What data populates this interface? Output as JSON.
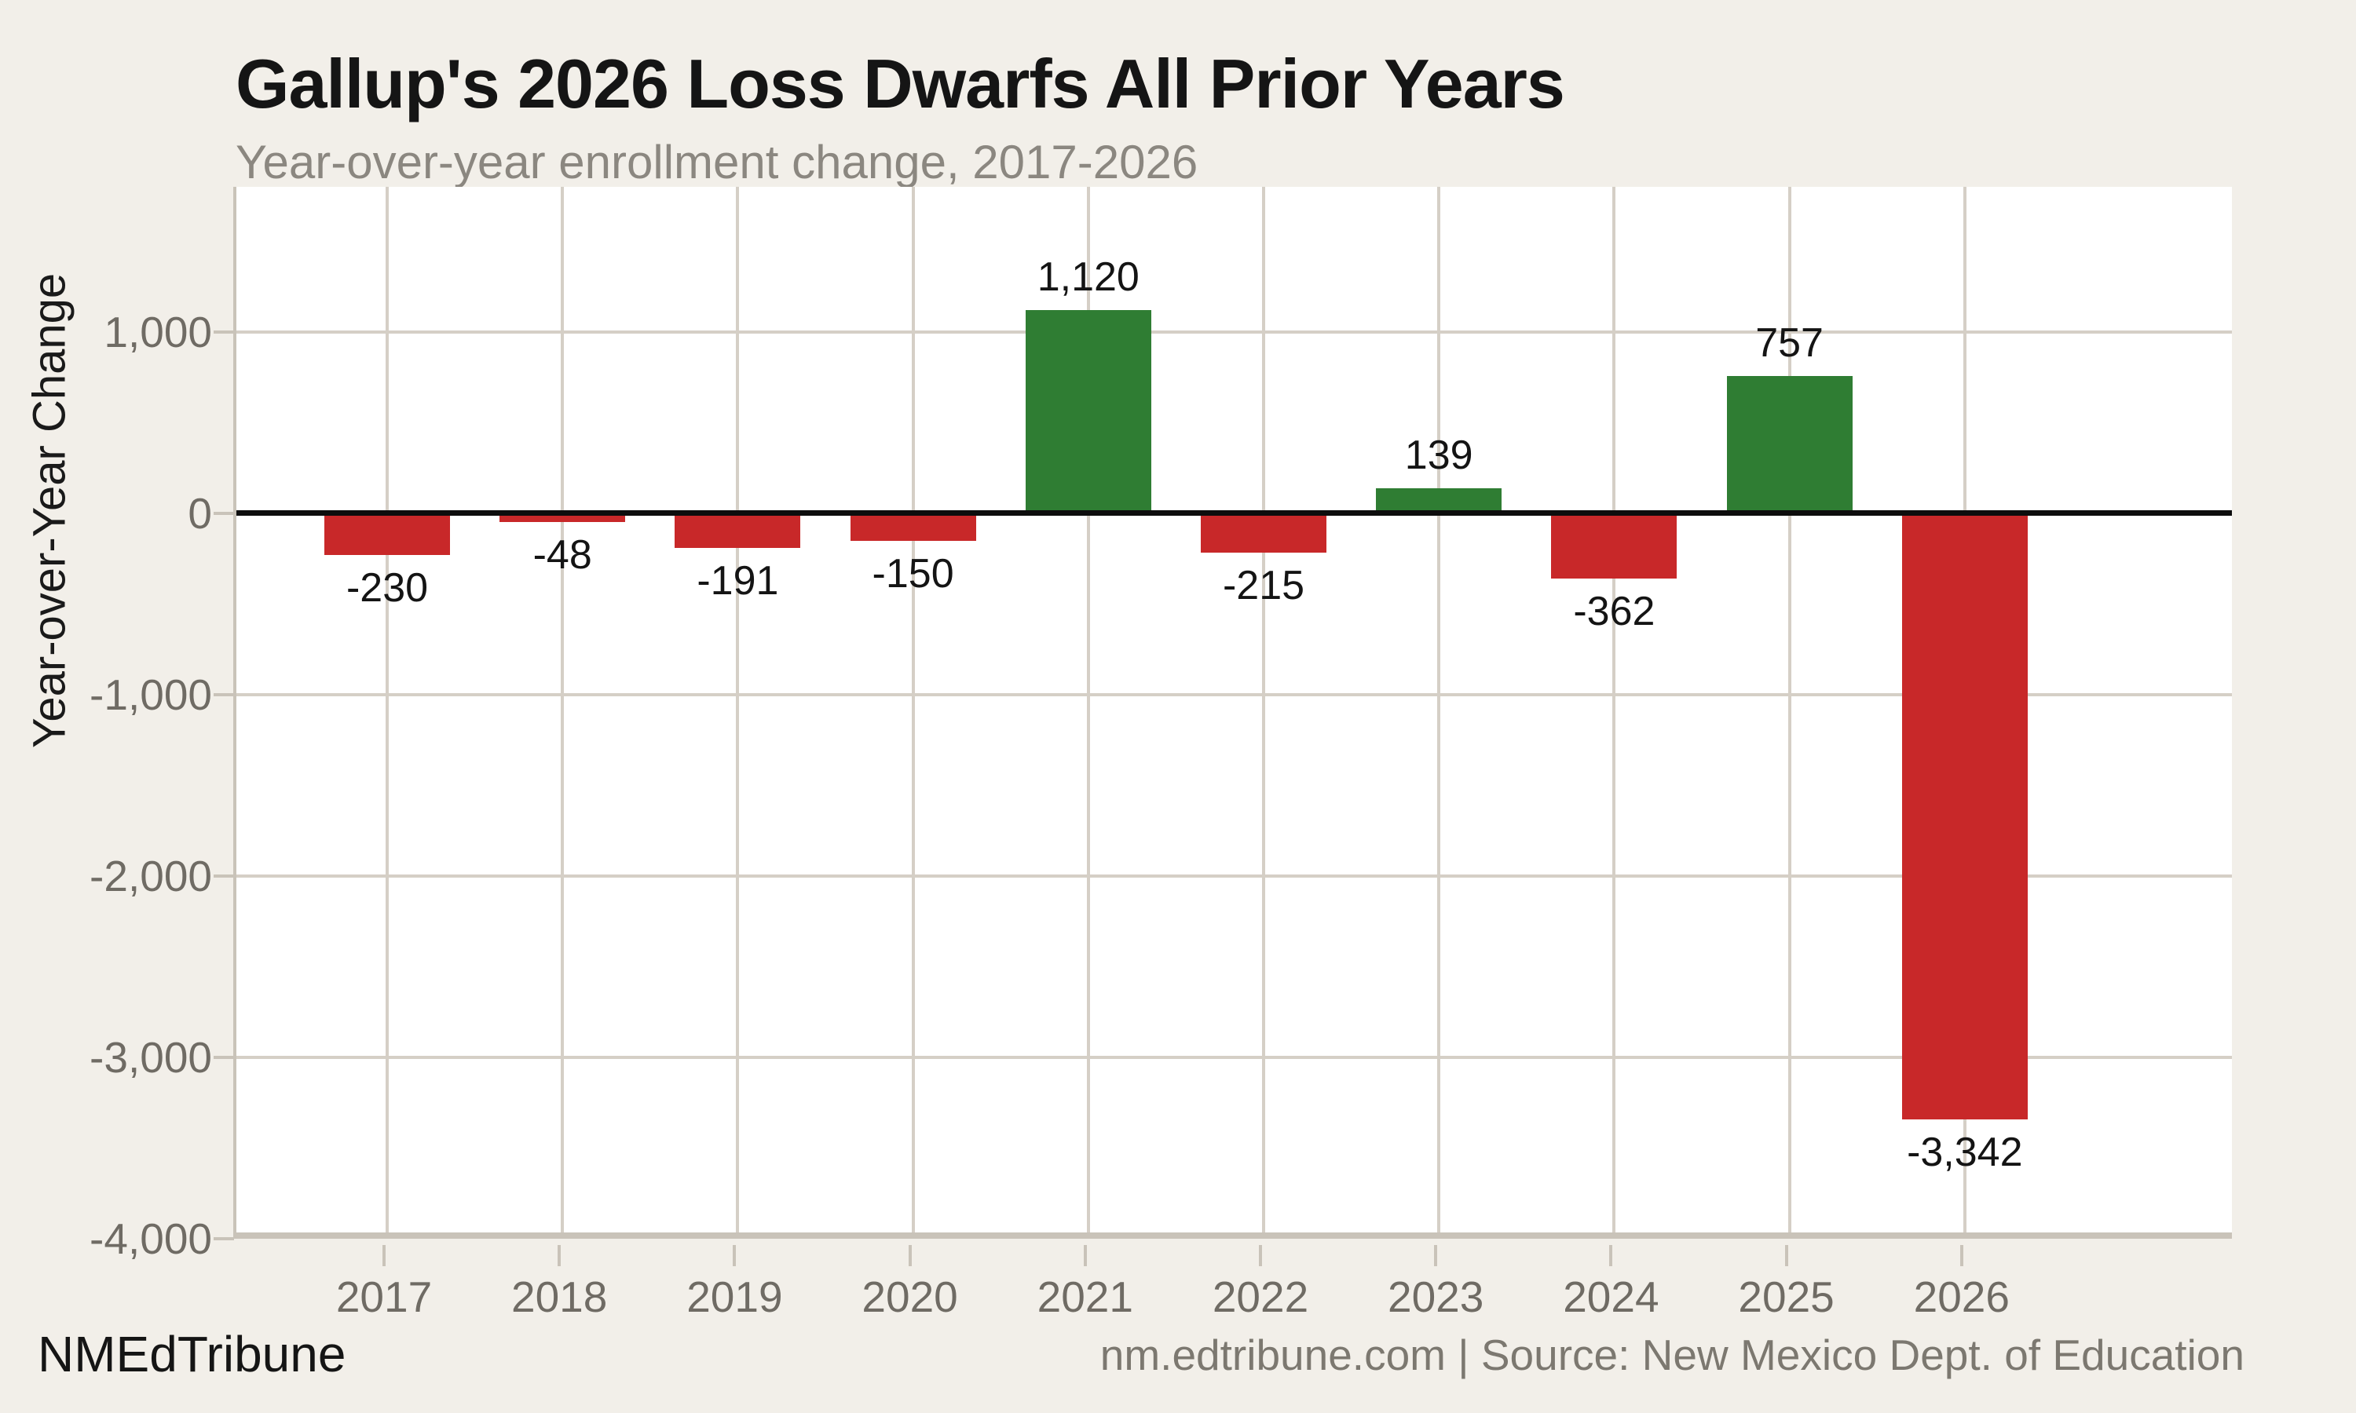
{
  "title": "Gallup's 2026 Loss Dwarfs All Prior Years",
  "subtitle": "Year-over-year enrollment change, 2017-2026",
  "footer": {
    "brand": "NMEdTribune",
    "source": "nm.edtribune.com | Source: New Mexico Dept. of Education"
  },
  "colors": {
    "background": "#F2EFE9",
    "plot_background": "#FFFFFF",
    "gridline": "#D5CFC6",
    "axis_line": "#C9C3B9",
    "zero_line": "#0D0D0D",
    "positive_bar": "#2F7D33",
    "negative_bar": "#C82829",
    "tick_label": "#6F6B64",
    "bar_label": "#141414"
  },
  "chart_data": {
    "type": "bar",
    "title": "Gallup's 2026 Loss Dwarfs All Prior Years",
    "subtitle": "Year-over-year enrollment change, 2017-2026",
    "categories": [
      "2017",
      "2018",
      "2019",
      "2020",
      "2021",
      "2022",
      "2023",
      "2024",
      "2025",
      "2026"
    ],
    "values": [
      -230,
      -48,
      -191,
      -150,
      1120,
      -215,
      139,
      -362,
      757,
      -3342
    ],
    "bar_labels": [
      "-230",
      "-48",
      "-191",
      "-150",
      "1,120",
      "-215",
      "139",
      "-362",
      "757",
      "-3,342"
    ],
    "xlabel": "",
    "ylabel": "Year-over-Year Change",
    "ylim": [
      -4000,
      1800
    ],
    "yticks": [
      {
        "value": 1000,
        "label": "1,000"
      },
      {
        "value": 0,
        "label": "0"
      },
      {
        "value": -1000,
        "label": "-1,000"
      },
      {
        "value": -2000,
        "label": "-2,000"
      },
      {
        "value": -3000,
        "label": "-3,000"
      },
      {
        "value": -4000,
        "label": "-4,000"
      }
    ],
    "grid": true,
    "legend": false,
    "positive_color": "#2F7D33",
    "negative_color": "#C82829"
  }
}
